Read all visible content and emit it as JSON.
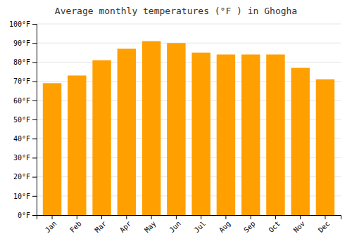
{
  "chart_data": {
    "type": "bar",
    "title": "Average monthly temperatures (°F ) in Ghogha",
    "categories": [
      "Jan",
      "Feb",
      "Mar",
      "Apr",
      "May",
      "Jun",
      "Jul",
      "Aug",
      "Sep",
      "Oct",
      "Nov",
      "Dec"
    ],
    "values": [
      69,
      73,
      81,
      87,
      91,
      90,
      85,
      84,
      84,
      84,
      77,
      71
    ],
    "color": "#FFA000",
    "ylim": [
      0,
      100
    ],
    "yticks": [
      {
        "value": 0,
        "label": "0°F"
      },
      {
        "value": 10,
        "label": "10°F"
      },
      {
        "value": 20,
        "label": "20°F"
      },
      {
        "value": 30,
        "label": "30°F"
      },
      {
        "value": 40,
        "label": "40°F"
      },
      {
        "value": 50,
        "label": "50°F"
      },
      {
        "value": 60,
        "label": "60°F"
      },
      {
        "value": 70,
        "label": "70°F"
      },
      {
        "value": 80,
        "label": "80°F"
      },
      {
        "value": 90,
        "label": "90°F"
      },
      {
        "value": 100,
        "label": "100°F"
      }
    ],
    "grid": true
  }
}
